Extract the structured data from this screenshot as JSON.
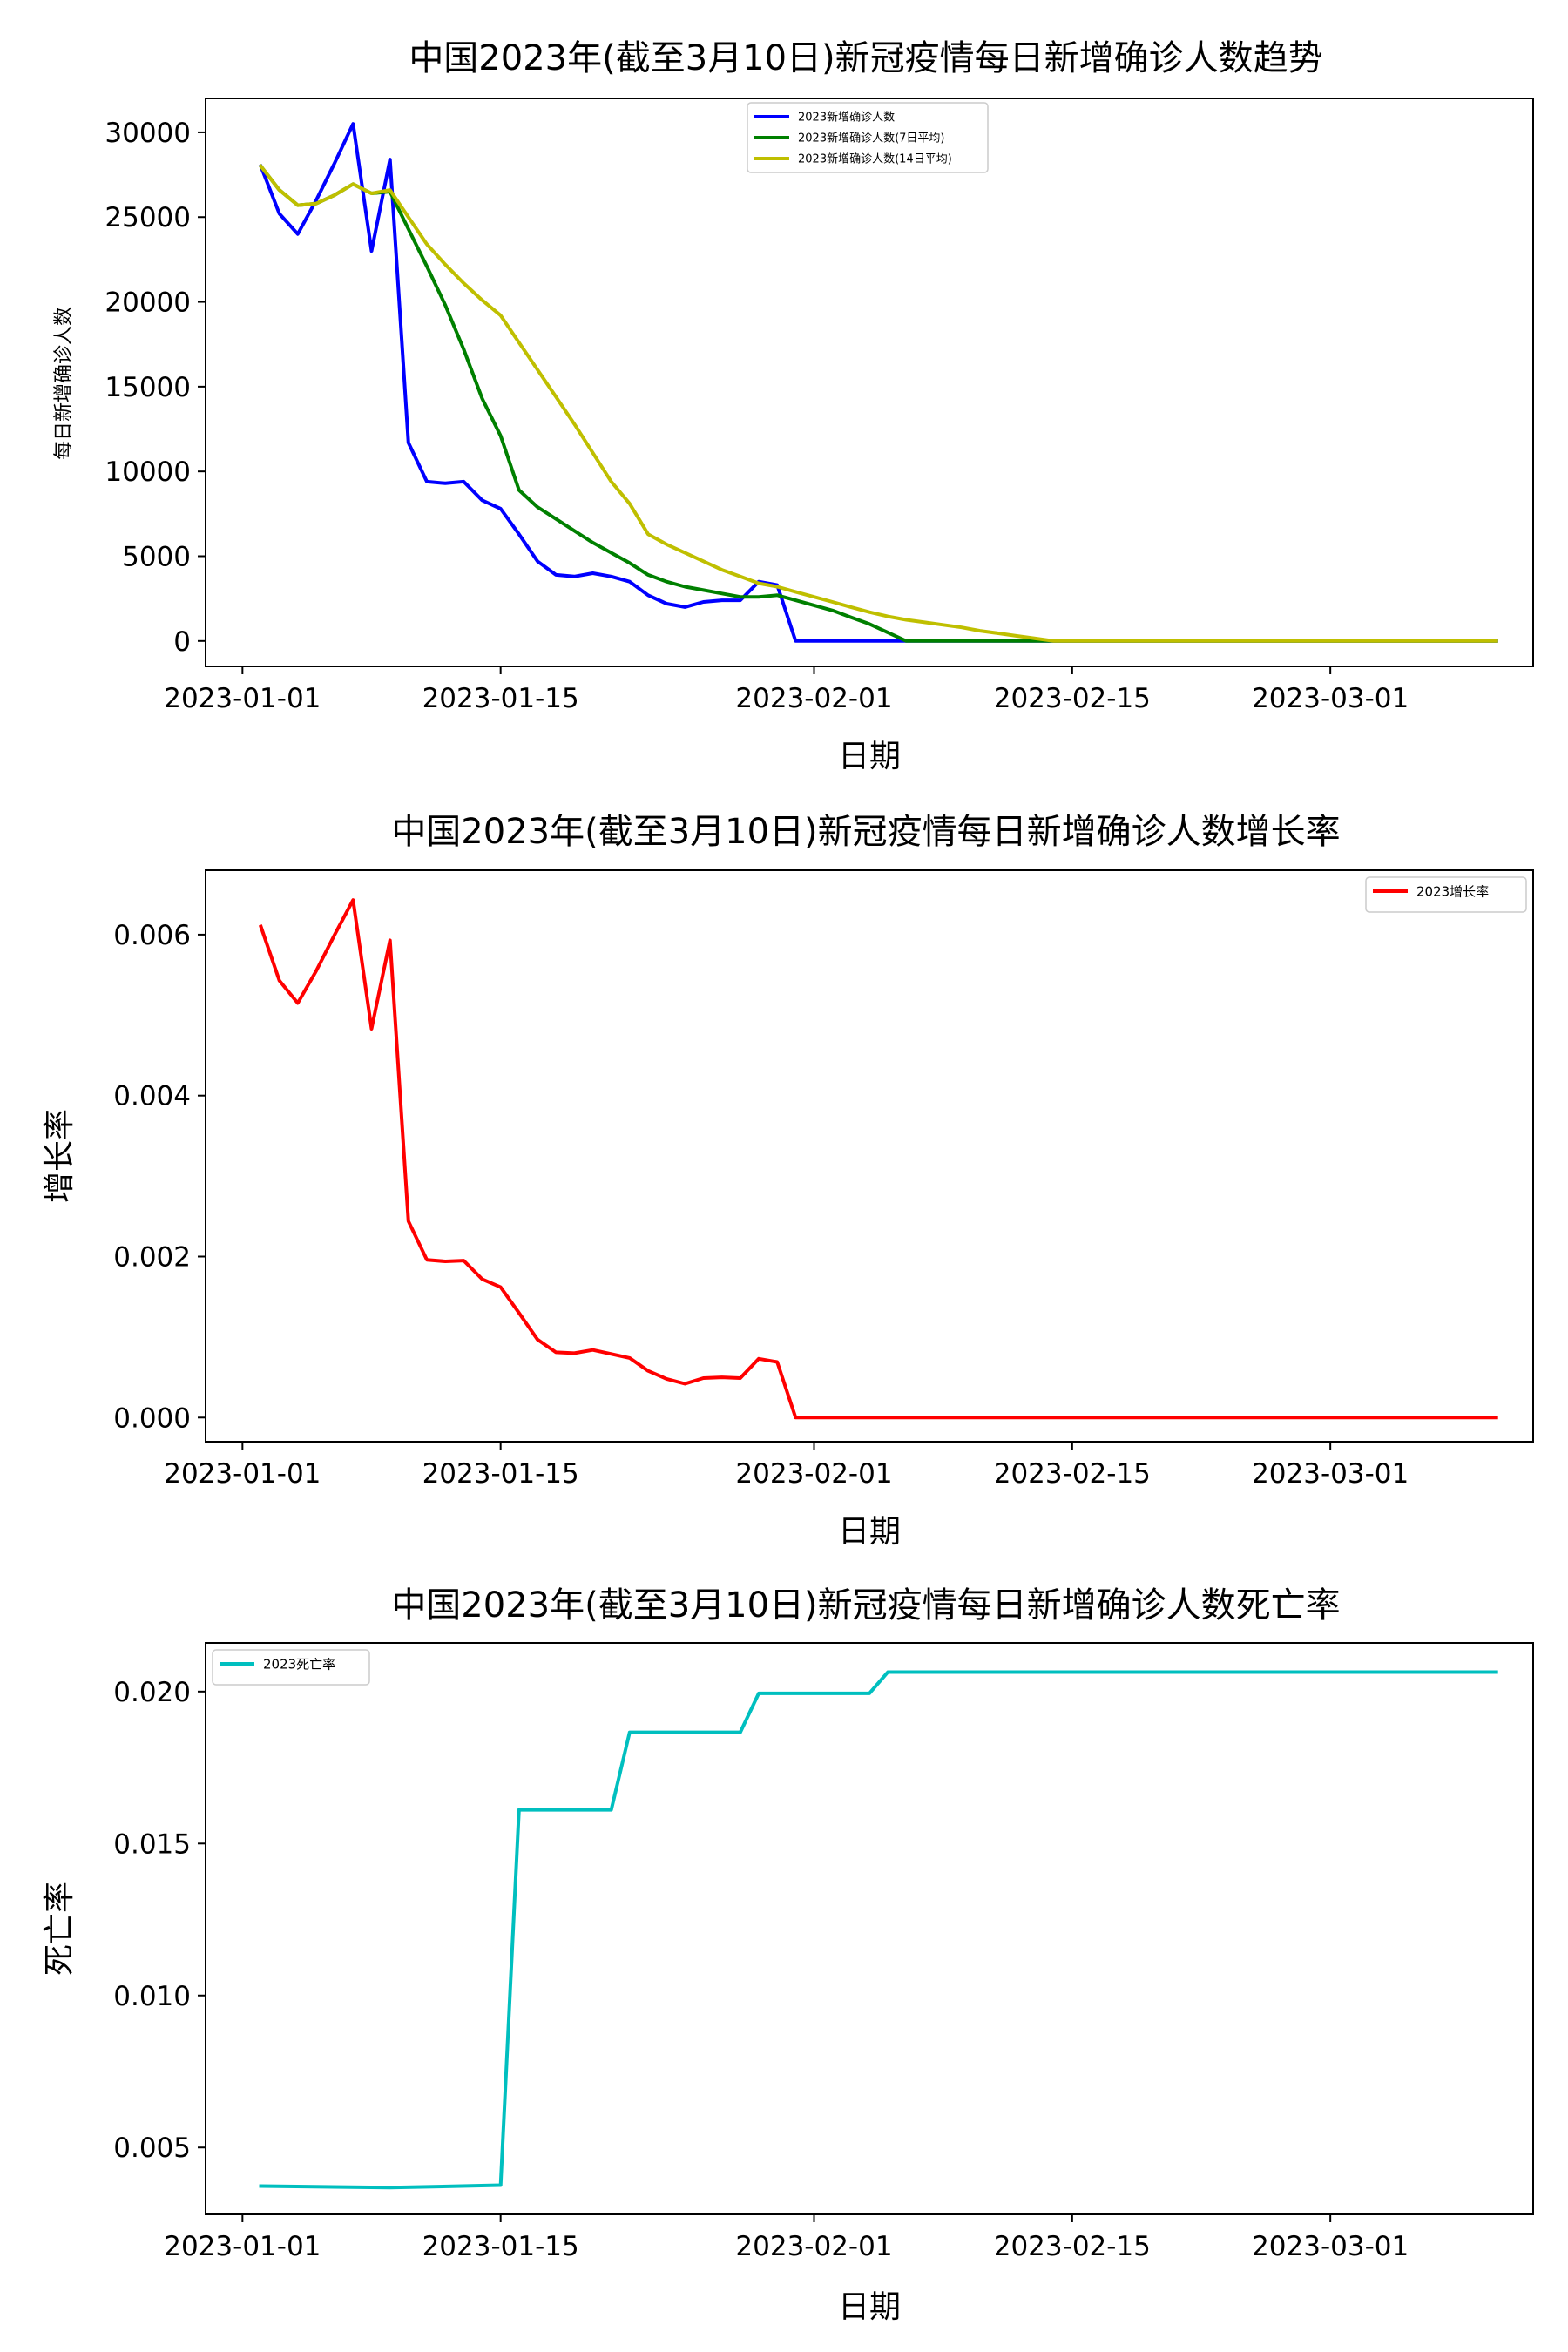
{
  "chart_data": [
    {
      "type": "line",
      "title": "中国2023年(截至3月10日)新冠疫情每日新增确诊人数趋势",
      "xlabel": "日期",
      "ylabel": "每日新增确诊人数",
      "x_ticks": [
        "2023-01-01",
        "2023-01-15",
        "2023-02-01",
        "2023-02-15",
        "2023-03-01"
      ],
      "y_ticks": [
        "0",
        "5000",
        "10000",
        "15000",
        "20000",
        "25000",
        "30000"
      ],
      "xlim": [
        "2023-12-31T00:00",
        "2023-03-12"
      ],
      "xlim_dates": [
        "2022-12-30",
        "2023-03-12"
      ],
      "ylim": [
        -1500,
        32000
      ],
      "legend": "top-center",
      "grid": false,
      "series": [
        {
          "name": "2023新增确诊人数",
          "color": "#0000ff",
          "points": [
            [
              "2023-01-02",
              28000
            ],
            [
              "2023-01-03",
              25200
            ],
            [
              "2023-01-04",
              24000
            ],
            [
              "2023-01-05",
              26000
            ],
            [
              "2023-01-06",
              28200
            ],
            [
              "2023-01-07",
              30500
            ],
            [
              "2023-01-08",
              23000
            ],
            [
              "2023-01-09",
              28400
            ],
            [
              "2023-01-10",
              11700
            ],
            [
              "2023-01-11",
              9400
            ],
            [
              "2023-01-12",
              9300
            ],
            [
              "2023-01-13",
              9400
            ],
            [
              "2023-01-14",
              8300
            ],
            [
              "2023-01-15",
              7800
            ],
            [
              "2023-01-16",
              6300
            ],
            [
              "2023-01-17",
              4700
            ],
            [
              "2023-01-18",
              3900
            ],
            [
              "2023-01-19",
              3800
            ],
            [
              "2023-01-20",
              4000
            ],
            [
              "2023-01-21",
              3800
            ],
            [
              "2023-01-22",
              3500
            ],
            [
              "2023-01-23",
              2700
            ],
            [
              "2023-01-24",
              2200
            ],
            [
              "2023-01-25",
              2000
            ],
            [
              "2023-01-26",
              2300
            ],
            [
              "2023-01-27",
              2400
            ],
            [
              "2023-01-28",
              2400
            ],
            [
              "2023-01-29",
              3500
            ],
            [
              "2023-01-30",
              3300
            ],
            [
              "2023-01-31",
              0
            ],
            [
              "2023-02-01",
              0
            ],
            [
              "2023-02-10",
              0
            ],
            [
              "2023-02-20",
              0
            ],
            [
              "2023-03-01",
              0
            ],
            [
              "2023-03-10",
              0
            ]
          ]
        },
        {
          "name": "2023新增确诊人数(7日平均)",
          "color": "#008000",
          "points": [
            [
              "2023-01-02",
              28000
            ],
            [
              "2023-01-03",
              26600
            ],
            [
              "2023-01-04",
              25700
            ],
            [
              "2023-01-05",
              25800
            ],
            [
              "2023-01-06",
              26300
            ],
            [
              "2023-01-07",
              26950
            ],
            [
              "2023-01-08",
              26400
            ],
            [
              "2023-01-09",
              26500
            ],
            [
              "2023-01-10",
              24300
            ],
            [
              "2023-01-11",
              22100
            ],
            [
              "2023-01-12",
              19800
            ],
            [
              "2023-01-13",
              17200
            ],
            [
              "2023-01-14",
              14300
            ],
            [
              "2023-01-15",
              12100
            ],
            [
              "2023-01-16",
              8900
            ],
            [
              "2023-01-17",
              7900
            ],
            [
              "2023-01-18",
              7200
            ],
            [
              "2023-01-19",
              6500
            ],
            [
              "2023-01-20",
              5800
            ],
            [
              "2023-01-21",
              5200
            ],
            [
              "2023-01-22",
              4600
            ],
            [
              "2023-01-23",
              3900
            ],
            [
              "2023-01-24",
              3500
            ],
            [
              "2023-01-25",
              3200
            ],
            [
              "2023-01-26",
              3000
            ],
            [
              "2023-01-27",
              2800
            ],
            [
              "2023-01-28",
              2600
            ],
            [
              "2023-01-29",
              2600
            ],
            [
              "2023-01-30",
              2700
            ],
            [
              "2023-01-31",
              2400
            ],
            [
              "2023-02-01",
              2100
            ],
            [
              "2023-02-02",
              1800
            ],
            [
              "2023-02-03",
              1400
            ],
            [
              "2023-02-04",
              1000
            ],
            [
              "2023-02-05",
              500
            ],
            [
              "2023-02-06",
              0
            ],
            [
              "2023-02-15",
              0
            ],
            [
              "2023-03-01",
              0
            ],
            [
              "2023-03-10",
              0
            ]
          ]
        },
        {
          "name": "2023新增确诊人数(14日平均)",
          "color": "#bfbf00",
          "points": [
            [
              "2023-01-02",
              28000
            ],
            [
              "2023-01-03",
              26600
            ],
            [
              "2023-01-04",
              25700
            ],
            [
              "2023-01-05",
              25800
            ],
            [
              "2023-01-06",
              26300
            ],
            [
              "2023-01-07",
              26950
            ],
            [
              "2023-01-08",
              26400
            ],
            [
              "2023-01-09",
              26600
            ],
            [
              "2023-01-10",
              25000
            ],
            [
              "2023-01-11",
              23400
            ],
            [
              "2023-01-12",
              22200
            ],
            [
              "2023-01-13",
              21100
            ],
            [
              "2023-01-14",
              20100
            ],
            [
              "2023-01-15",
              19200
            ],
            [
              "2023-01-16",
              17600
            ],
            [
              "2023-01-17",
              16000
            ],
            [
              "2023-01-18",
              14400
            ],
            [
              "2023-01-19",
              12800
            ],
            [
              "2023-01-20",
              11100
            ],
            [
              "2023-01-21",
              9400
            ],
            [
              "2023-01-22",
              8100
            ],
            [
              "2023-01-23",
              6300
            ],
            [
              "2023-01-24",
              5700
            ],
            [
              "2023-01-25",
              5200
            ],
            [
              "2023-01-26",
              4700
            ],
            [
              "2023-01-27",
              4200
            ],
            [
              "2023-01-28",
              3800
            ],
            [
              "2023-01-29",
              3400
            ],
            [
              "2023-01-30",
              3200
            ],
            [
              "2023-01-31",
              2900
            ],
            [
              "2023-02-01",
              2600
            ],
            [
              "2023-02-02",
              2300
            ],
            [
              "2023-02-03",
              2000
            ],
            [
              "2023-02-04",
              1700
            ],
            [
              "2023-02-05",
              1450
            ],
            [
              "2023-02-06",
              1250
            ],
            [
              "2023-02-07",
              1100
            ],
            [
              "2023-02-08",
              950
            ],
            [
              "2023-02-09",
              800
            ],
            [
              "2023-02-10",
              600
            ],
            [
              "2023-02-11",
              450
            ],
            [
              "2023-02-12",
              300
            ],
            [
              "2023-02-13",
              150
            ],
            [
              "2023-02-14",
              0
            ],
            [
              "2023-02-20",
              0
            ],
            [
              "2023-03-01",
              0
            ],
            [
              "2023-03-10",
              0
            ]
          ]
        }
      ]
    },
    {
      "type": "line",
      "title": "中国2023年(截至3月10日)新冠疫情每日新增确诊人数增长率",
      "xlabel": "日期",
      "ylabel": "增长率",
      "x_ticks": [
        "2023-01-01",
        "2023-01-15",
        "2023-02-01",
        "2023-02-15",
        "2023-03-01"
      ],
      "y_ticks": [
        "0.000",
        "0.002",
        "0.004",
        "0.006"
      ],
      "xlim_dates": [
        "2022-12-30",
        "2023-03-12"
      ],
      "ylim": [
        -0.0003,
        0.0068
      ],
      "legend": "top-right",
      "grid": false,
      "series": [
        {
          "name": "2023增长率",
          "color": "#ff0000",
          "points": [
            [
              "2023-01-02",
              0.0061
            ],
            [
              "2023-01-03",
              0.00543
            ],
            [
              "2023-01-04",
              0.00515
            ],
            [
              "2023-01-05",
              0.00555
            ],
            [
              "2023-01-06",
              0.006
            ],
            [
              "2023-01-07",
              0.00643
            ],
            [
              "2023-01-08",
              0.00483
            ],
            [
              "2023-01-09",
              0.00593
            ],
            [
              "2023-01-10",
              0.00244
            ],
            [
              "2023-01-11",
              0.00196
            ],
            [
              "2023-01-12",
              0.00194
            ],
            [
              "2023-01-13",
              0.00195
            ],
            [
              "2023-01-14",
              0.00172
            ],
            [
              "2023-01-15",
              0.00162
            ],
            [
              "2023-01-16",
              0.0013
            ],
            [
              "2023-01-17",
              0.00097
            ],
            [
              "2023-01-18",
              0.00081
            ],
            [
              "2023-01-19",
              0.0008
            ],
            [
              "2023-01-20",
              0.00084
            ],
            [
              "2023-01-21",
              0.00079
            ],
            [
              "2023-01-22",
              0.00074
            ],
            [
              "2023-01-23",
              0.00058
            ],
            [
              "2023-01-24",
              0.00048
            ],
            [
              "2023-01-25",
              0.00042
            ],
            [
              "2023-01-26",
              0.00049
            ],
            [
              "2023-01-27",
              0.0005
            ],
            [
              "2023-01-28",
              0.00049
            ],
            [
              "2023-01-29",
              0.00073
            ],
            [
              "2023-01-30",
              0.00069
            ],
            [
              "2023-01-31",
              0.0
            ],
            [
              "2023-02-01",
              0.0
            ],
            [
              "2023-02-15",
              0.0
            ],
            [
              "2023-03-01",
              0.0
            ],
            [
              "2023-03-10",
              0.0
            ]
          ]
        }
      ]
    },
    {
      "type": "line",
      "title": "中国2023年(截至3月10日)新冠疫情每日新增确诊人数死亡率",
      "xlabel": "日期",
      "ylabel": "死亡率",
      "x_ticks": [
        "2023-01-01",
        "2023-01-15",
        "2023-02-01",
        "2023-02-15",
        "2023-03-01"
      ],
      "y_ticks": [
        "0.005",
        "0.010",
        "0.015",
        "0.020"
      ],
      "xlim_dates": [
        "2022-12-30",
        "2023-03-12"
      ],
      "ylim": [
        0.0028,
        0.0216
      ],
      "legend": "top-left",
      "grid": false,
      "series": [
        {
          "name": "2023死亡率",
          "color": "#00bfbf",
          "points": [
            [
              "2023-01-02",
              0.00373
            ],
            [
              "2023-01-09",
              0.00368
            ],
            [
              "2023-01-15",
              0.00376
            ],
            [
              "2023-01-16",
              0.01611
            ],
            [
              "2023-01-21",
              0.01611
            ],
            [
              "2023-01-22",
              0.01866
            ],
            [
              "2023-01-28",
              0.01866
            ],
            [
              "2023-01-29",
              0.01994
            ],
            [
              "2023-02-04",
              0.01994
            ],
            [
              "2023-02-05",
              0.02064
            ],
            [
              "2023-02-15",
              0.02064
            ],
            [
              "2023-03-01",
              0.02064
            ],
            [
              "2023-03-10",
              0.02064
            ]
          ]
        }
      ]
    }
  ]
}
